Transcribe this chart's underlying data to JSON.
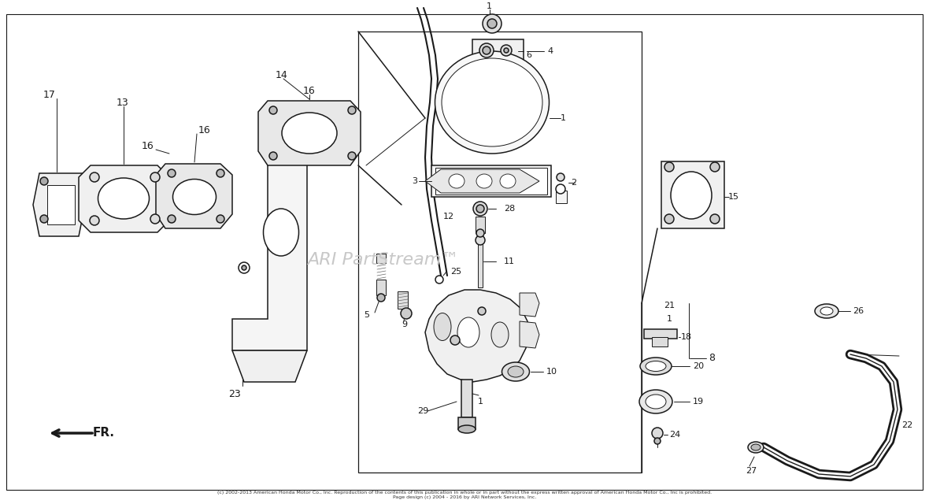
{
  "bg_color": "#ffffff",
  "lc": "#1a1a1a",
  "watermark_color": "#c8c8c8",
  "watermark_text": "ARI PartStream™",
  "copyright1": "(c) 2002-2013 American Honda Motor Co., Inc. Reproduction of the contents of this publication in whole or in part without the express written approval of American Honda Motor Co., Inc is prohibited.",
  "copyright2": "Page design (c) 2004 - 2016 by ARI Network Services, Inc.",
  "fig_w": 11.8,
  "fig_h": 6.4,
  "dpi": 100
}
